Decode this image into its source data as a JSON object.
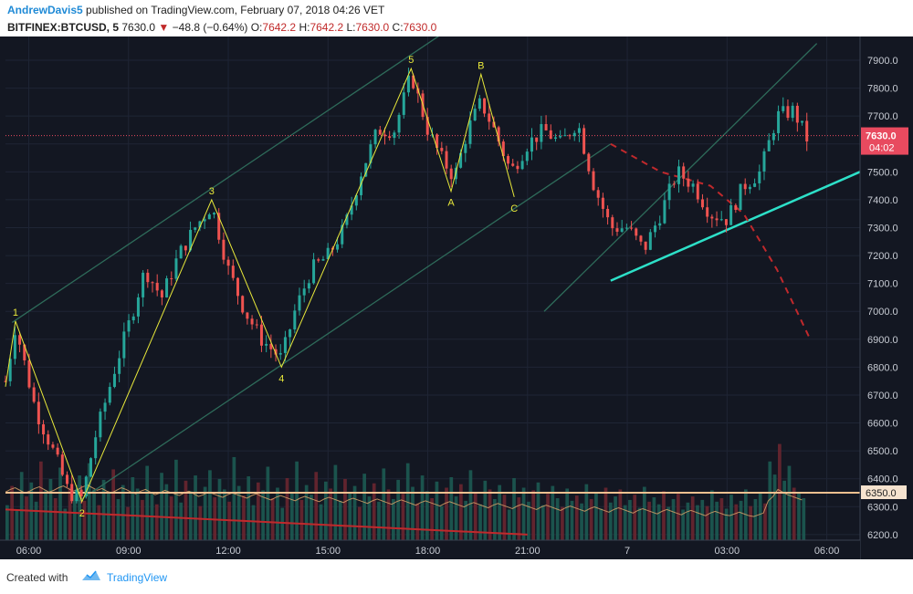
{
  "header": {
    "author": "AndrewDavis5",
    "published_text": "published on TradingView.com, February 07, 2018 04:26 VET",
    "symbol": "BITFINEX:BTCUSD, 5",
    "last_price": "7630.0",
    "change_arrow": "▼",
    "change": "−48.8 (−0.64%)",
    "o_label": "O:",
    "o_value": "7642.2",
    "h_label": "H:",
    "h_value": "7642.2",
    "l_label": "L:",
    "l_value": "7630.0",
    "c_label": "C:",
    "c_value": "7630.0"
  },
  "footer": {
    "created_with": "Created with",
    "brand": "TradingView"
  },
  "colors": {
    "background": "#131722",
    "up": "#26a69a",
    "down": "#ef5350",
    "wave_lines": "#e8e83a",
    "channel": "#2e6b5a",
    "support": "#2de0c8",
    "projection": "#c0292c",
    "level_line": "#f0c090",
    "price_tag": "#e84a5f"
  },
  "chart_data": {
    "type": "candlestick",
    "symbol": "BITFINEX:BTCUSD",
    "interval": "5",
    "y_axis": {
      "ticks": [
        "7900.0",
        "7800.0",
        "7700.0",
        "7600.0",
        "7500.0",
        "7400.0",
        "7300.0",
        "7200.0",
        "7100.0",
        "7000.0",
        "6900.0",
        "6800.0",
        "6700.0",
        "6600.0",
        "6500.0",
        "6400.0",
        "6300.0",
        "6200.0"
      ],
      "range": [
        6180,
        7985
      ]
    },
    "x_axis": {
      "ticks": [
        "06:00",
        "09:00",
        "12:00",
        "15:00",
        "18:00",
        "21:00",
        "7",
        "03:00",
        "06:00"
      ],
      "tick_hours": [
        6,
        9,
        12,
        15,
        18,
        21,
        24,
        27,
        30
      ],
      "range_hours": [
        5.3,
        31.0
      ]
    },
    "current_price": {
      "value": "7630.0",
      "countdown": "04:02"
    },
    "level_line": {
      "value": "6350.0",
      "price": 6350
    },
    "wave_points": [
      {
        "label": "1",
        "t": 5.6,
        "price": 6965
      },
      {
        "label": "2",
        "t": 7.6,
        "price": 6318
      },
      {
        "label": "3",
        "t": 11.5,
        "price": 7400
      },
      {
        "label": "4",
        "t": 13.6,
        "price": 6800
      },
      {
        "label": "5",
        "t": 17.5,
        "price": 7870
      },
      {
        "label": "A",
        "t": 18.7,
        "price": 7430
      },
      {
        "label": "B",
        "t": 19.6,
        "price": 7850
      },
      {
        "label": "C",
        "t": 20.6,
        "price": 7410
      }
    ],
    "wave_start": {
      "t": 5.3,
      "price": 6730
    },
    "price_path": [
      [
        5.3,
        6750
      ],
      [
        5.6,
        6950
      ],
      [
        6.2,
        6650
      ],
      [
        6.8,
        6480
      ],
      [
        7.2,
        6350
      ],
      [
        7.6,
        6330
      ],
      [
        8.0,
        6550
      ],
      [
        8.6,
        6800
      ],
      [
        9.0,
        6950
      ],
      [
        9.5,
        7150
      ],
      [
        10.0,
        7050
      ],
      [
        10.5,
        7200
      ],
      [
        11.0,
        7300
      ],
      [
        11.5,
        7380
      ],
      [
        12.0,
        7150
      ],
      [
        12.5,
        7000
      ],
      [
        13.0,
        6900
      ],
      [
        13.6,
        6830
      ],
      [
        14.0,
        7000
      ],
      [
        14.5,
        7150
      ],
      [
        15.0,
        7200
      ],
      [
        15.5,
        7300
      ],
      [
        16.0,
        7500
      ],
      [
        16.5,
        7650
      ],
      [
        17.0,
        7650
      ],
      [
        17.5,
        7850
      ],
      [
        18.0,
        7650
      ],
      [
        18.4,
        7550
      ],
      [
        18.8,
        7480
      ],
      [
        19.2,
        7650
      ],
      [
        19.6,
        7750
      ],
      [
        20.0,
        7650
      ],
      [
        20.5,
        7500
      ],
      [
        21.0,
        7600
      ],
      [
        21.5,
        7650
      ],
      [
        22.0,
        7600
      ],
      [
        22.5,
        7680
      ],
      [
        23.0,
        7450
      ],
      [
        23.5,
        7300
      ],
      [
        24.0,
        7300
      ],
      [
        24.5,
        7220
      ],
      [
        25.0,
        7350
      ],
      [
        25.5,
        7500
      ],
      [
        26.0,
        7450
      ],
      [
        26.5,
        7350
      ],
      [
        27.0,
        7330
      ],
      [
        27.5,
        7450
      ],
      [
        28.0,
        7500
      ],
      [
        28.5,
        7700
      ],
      [
        29.0,
        7720
      ],
      [
        29.4,
        7620
      ]
    ],
    "volume_series": [
      40,
      62,
      35,
      78,
      50,
      66,
      44,
      90,
      57,
      70,
      48,
      83,
      36,
      60,
      52,
      74,
      45,
      88,
      58,
      40,
      69,
      55,
      81,
      47,
      63,
      38,
      72,
      59,
      46,
      85,
      53,
      41,
      77,
      64,
      50,
      92,
      43,
      68,
      56,
      74,
      39,
      61,
      80,
      49,
      70,
      58,
      44,
      95,
      62,
      51,
      73,
      40,
      66,
      57,
      84,
      48,
      60,
      37,
      71,
      55,
      90,
      46,
      63,
      52,
      78,
      41,
      67,
      59,
      86,
      45,
      70,
      54,
      62,
      38,
      76,
      50,
      65,
      44,
      82,
      58,
      47,
      69,
      53,
      88,
      61,
      42,
      74,
      56,
      48,
      67,
      39,
      60,
      72,
      50,
      64,
      45,
      80,
      55,
      41,
      68,
      58,
      47,
      63,
      52,
      35,
      71,
      49,
      60,
      44,
      57,
      66,
      40,
      53,
      62,
      48,
      38,
      59,
      45,
      51,
      42,
      64,
      47,
      55,
      36,
      60,
      43,
      50,
      58,
      40,
      46,
      52,
      37,
      61,
      44,
      49,
      41,
      56,
      38,
      47,
      53,
      35,
      43,
      50,
      40,
      46,
      39,
      57,
      44,
      48,
      36,
      52,
      41,
      45,
      58,
      39,
      47,
      54,
      42,
      90,
      75,
      110,
      68,
      85,
      60,
      55,
      48
    ],
    "volume_avg": [
      55,
      58,
      60,
      57,
      54,
      56,
      59,
      61,
      58,
      55,
      57,
      60,
      62,
      59,
      56,
      58,
      61,
      63,
      60,
      57,
      59,
      56,
      54,
      57,
      60,
      58,
      55,
      53,
      56,
      58,
      55,
      52,
      54,
      57,
      55,
      53,
      51,
      54,
      56,
      53,
      50,
      52,
      55,
      53,
      51,
      49,
      52,
      54,
      52,
      50,
      48,
      51,
      53,
      50,
      48,
      46,
      49,
      51,
      49,
      47,
      45,
      48,
      50,
      48,
      46,
      44,
      47,
      49,
      47,
      45,
      43,
      46,
      48,
      46,
      44,
      42,
      45,
      47,
      45,
      43,
      41,
      44,
      46,
      44,
      42,
      40,
      43,
      45,
      43,
      41,
      39,
      42,
      44,
      42,
      40,
      38,
      41,
      43,
      41,
      39,
      37,
      40,
      42,
      40,
      38,
      36,
      39,
      41,
      39,
      37,
      35,
      38,
      40,
      38,
      36,
      34,
      37,
      39,
      37,
      35,
      33,
      36,
      38,
      36,
      34,
      32,
      35,
      37,
      35,
      33,
      31,
      34,
      36,
      34,
      32,
      30,
      33,
      35,
      33,
      31,
      29,
      32,
      34,
      32,
      30,
      28,
      31,
      33,
      31,
      29,
      28,
      30,
      32,
      30,
      28,
      27,
      29,
      31,
      45,
      50,
      58,
      55,
      52,
      50,
      48,
      46
    ],
    "channel_lines": [
      {
        "from": {
          "t": 5.5,
          "price": 6960
        },
        "to": {
          "t": 18.5,
          "price": 8000
        }
      },
      {
        "from": {
          "t": 7.5,
          "price": 6320
        },
        "to": {
          "t": 23.5,
          "price": 7600
        }
      },
      {
        "from": {
          "t": 21.5,
          "price": 7000
        },
        "to": {
          "t": 29.7,
          "price": 7960
        }
      }
    ],
    "support_line": {
      "from": {
        "t": 23.5,
        "price": 7110
      },
      "to": {
        "t": 31.0,
        "price": 7500
      }
    },
    "projection_line": [
      {
        "t": 23.5,
        "price": 7600
      },
      {
        "t": 25.0,
        "price": 7500
      },
      {
        "t": 26.5,
        "price": 7450
      },
      {
        "t": 27.5,
        "price": 7350
      },
      {
        "t": 28.5,
        "price": 7150
      },
      {
        "t": 29.5,
        "price": 6900
      }
    ],
    "down_trend": {
      "from": {
        "t": 5.3,
        "price": 6290
      },
      "to": {
        "t": 21.0,
        "price": 6200
      }
    }
  }
}
